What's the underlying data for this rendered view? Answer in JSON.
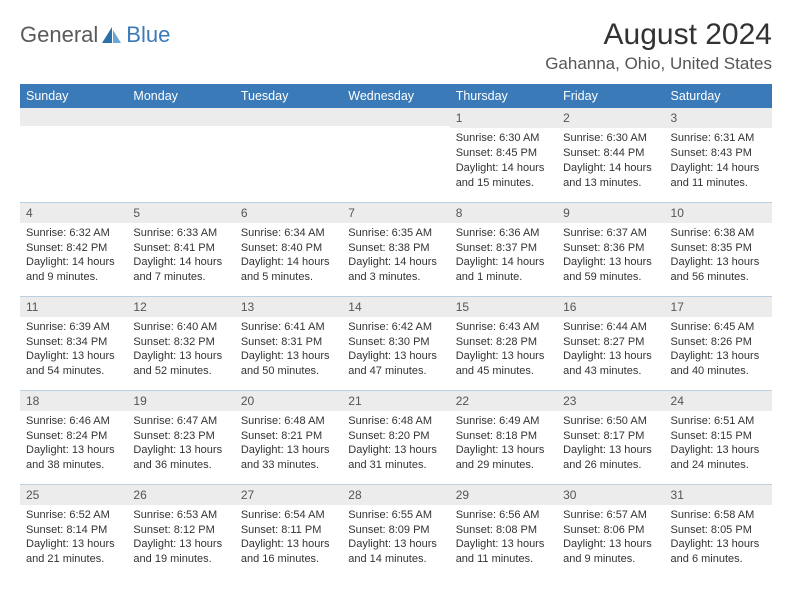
{
  "brand": {
    "text_general": "General",
    "text_blue": "Blue",
    "icon_color": "#2f6fa8"
  },
  "title": "August 2024",
  "location": "Gahanna, Ohio, United States",
  "day_headers": [
    "Sunday",
    "Monday",
    "Tuesday",
    "Wednesday",
    "Thursday",
    "Friday",
    "Saturday"
  ],
  "colors": {
    "header_bg": "#3a7ab8",
    "header_text": "#ffffff",
    "daynum_bg": "#ececec",
    "border": "#b8cfe4",
    "text": "#333333"
  },
  "weeks": [
    [
      {
        "day": "",
        "sunrise": "",
        "sunset": "",
        "daylight": ""
      },
      {
        "day": "",
        "sunrise": "",
        "sunset": "",
        "daylight": ""
      },
      {
        "day": "",
        "sunrise": "",
        "sunset": "",
        "daylight": ""
      },
      {
        "day": "",
        "sunrise": "",
        "sunset": "",
        "daylight": ""
      },
      {
        "day": "1",
        "sunrise": "Sunrise: 6:30 AM",
        "sunset": "Sunset: 8:45 PM",
        "daylight": "Daylight: 14 hours and 15 minutes."
      },
      {
        "day": "2",
        "sunrise": "Sunrise: 6:30 AM",
        "sunset": "Sunset: 8:44 PM",
        "daylight": "Daylight: 14 hours and 13 minutes."
      },
      {
        "day": "3",
        "sunrise": "Sunrise: 6:31 AM",
        "sunset": "Sunset: 8:43 PM",
        "daylight": "Daylight: 14 hours and 11 minutes."
      }
    ],
    [
      {
        "day": "4",
        "sunrise": "Sunrise: 6:32 AM",
        "sunset": "Sunset: 8:42 PM",
        "daylight": "Daylight: 14 hours and 9 minutes."
      },
      {
        "day": "5",
        "sunrise": "Sunrise: 6:33 AM",
        "sunset": "Sunset: 8:41 PM",
        "daylight": "Daylight: 14 hours and 7 minutes."
      },
      {
        "day": "6",
        "sunrise": "Sunrise: 6:34 AM",
        "sunset": "Sunset: 8:40 PM",
        "daylight": "Daylight: 14 hours and 5 minutes."
      },
      {
        "day": "7",
        "sunrise": "Sunrise: 6:35 AM",
        "sunset": "Sunset: 8:38 PM",
        "daylight": "Daylight: 14 hours and 3 minutes."
      },
      {
        "day": "8",
        "sunrise": "Sunrise: 6:36 AM",
        "sunset": "Sunset: 8:37 PM",
        "daylight": "Daylight: 14 hours and 1 minute."
      },
      {
        "day": "9",
        "sunrise": "Sunrise: 6:37 AM",
        "sunset": "Sunset: 8:36 PM",
        "daylight": "Daylight: 13 hours and 59 minutes."
      },
      {
        "day": "10",
        "sunrise": "Sunrise: 6:38 AM",
        "sunset": "Sunset: 8:35 PM",
        "daylight": "Daylight: 13 hours and 56 minutes."
      }
    ],
    [
      {
        "day": "11",
        "sunrise": "Sunrise: 6:39 AM",
        "sunset": "Sunset: 8:34 PM",
        "daylight": "Daylight: 13 hours and 54 minutes."
      },
      {
        "day": "12",
        "sunrise": "Sunrise: 6:40 AM",
        "sunset": "Sunset: 8:32 PM",
        "daylight": "Daylight: 13 hours and 52 minutes."
      },
      {
        "day": "13",
        "sunrise": "Sunrise: 6:41 AM",
        "sunset": "Sunset: 8:31 PM",
        "daylight": "Daylight: 13 hours and 50 minutes."
      },
      {
        "day": "14",
        "sunrise": "Sunrise: 6:42 AM",
        "sunset": "Sunset: 8:30 PM",
        "daylight": "Daylight: 13 hours and 47 minutes."
      },
      {
        "day": "15",
        "sunrise": "Sunrise: 6:43 AM",
        "sunset": "Sunset: 8:28 PM",
        "daylight": "Daylight: 13 hours and 45 minutes."
      },
      {
        "day": "16",
        "sunrise": "Sunrise: 6:44 AM",
        "sunset": "Sunset: 8:27 PM",
        "daylight": "Daylight: 13 hours and 43 minutes."
      },
      {
        "day": "17",
        "sunrise": "Sunrise: 6:45 AM",
        "sunset": "Sunset: 8:26 PM",
        "daylight": "Daylight: 13 hours and 40 minutes."
      }
    ],
    [
      {
        "day": "18",
        "sunrise": "Sunrise: 6:46 AM",
        "sunset": "Sunset: 8:24 PM",
        "daylight": "Daylight: 13 hours and 38 minutes."
      },
      {
        "day": "19",
        "sunrise": "Sunrise: 6:47 AM",
        "sunset": "Sunset: 8:23 PM",
        "daylight": "Daylight: 13 hours and 36 minutes."
      },
      {
        "day": "20",
        "sunrise": "Sunrise: 6:48 AM",
        "sunset": "Sunset: 8:21 PM",
        "daylight": "Daylight: 13 hours and 33 minutes."
      },
      {
        "day": "21",
        "sunrise": "Sunrise: 6:48 AM",
        "sunset": "Sunset: 8:20 PM",
        "daylight": "Daylight: 13 hours and 31 minutes."
      },
      {
        "day": "22",
        "sunrise": "Sunrise: 6:49 AM",
        "sunset": "Sunset: 8:18 PM",
        "daylight": "Daylight: 13 hours and 29 minutes."
      },
      {
        "day": "23",
        "sunrise": "Sunrise: 6:50 AM",
        "sunset": "Sunset: 8:17 PM",
        "daylight": "Daylight: 13 hours and 26 minutes."
      },
      {
        "day": "24",
        "sunrise": "Sunrise: 6:51 AM",
        "sunset": "Sunset: 8:15 PM",
        "daylight": "Daylight: 13 hours and 24 minutes."
      }
    ],
    [
      {
        "day": "25",
        "sunrise": "Sunrise: 6:52 AM",
        "sunset": "Sunset: 8:14 PM",
        "daylight": "Daylight: 13 hours and 21 minutes."
      },
      {
        "day": "26",
        "sunrise": "Sunrise: 6:53 AM",
        "sunset": "Sunset: 8:12 PM",
        "daylight": "Daylight: 13 hours and 19 minutes."
      },
      {
        "day": "27",
        "sunrise": "Sunrise: 6:54 AM",
        "sunset": "Sunset: 8:11 PM",
        "daylight": "Daylight: 13 hours and 16 minutes."
      },
      {
        "day": "28",
        "sunrise": "Sunrise: 6:55 AM",
        "sunset": "Sunset: 8:09 PM",
        "daylight": "Daylight: 13 hours and 14 minutes."
      },
      {
        "day": "29",
        "sunrise": "Sunrise: 6:56 AM",
        "sunset": "Sunset: 8:08 PM",
        "daylight": "Daylight: 13 hours and 11 minutes."
      },
      {
        "day": "30",
        "sunrise": "Sunrise: 6:57 AM",
        "sunset": "Sunset: 8:06 PM",
        "daylight": "Daylight: 13 hours and 9 minutes."
      },
      {
        "day": "31",
        "sunrise": "Sunrise: 6:58 AM",
        "sunset": "Sunset: 8:05 PM",
        "daylight": "Daylight: 13 hours and 6 minutes."
      }
    ]
  ]
}
